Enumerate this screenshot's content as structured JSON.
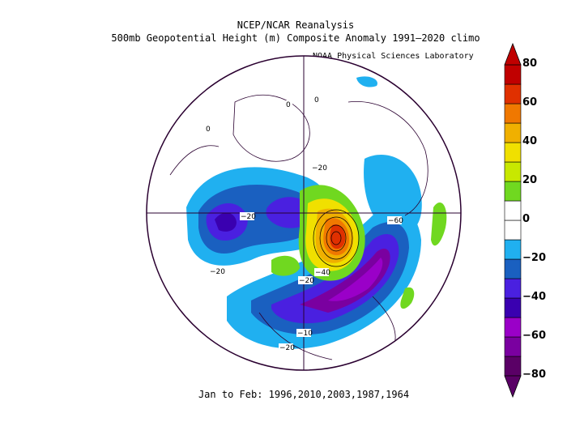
{
  "title": {
    "line1": "NCEP/NCAR Reanalysis",
    "line2": "500mb Geopotential Height (m) Composite Anomaly 1991–2020 climo"
  },
  "credit": "NOAA Physical Sciences Laboratory",
  "footer": "Jan to Feb: 1996,2010,2003,1987,1964",
  "colorbar": {
    "ticks": [
      "80",
      "60",
      "40",
      "20",
      "0",
      "−20",
      "−40",
      "−60",
      "−80"
    ],
    "colors": [
      "#5a0066",
      "#7a00a0",
      "#9a00c8",
      "#3a00b0",
      "#4a20e0",
      "#1a60c0",
      "#20b0f0",
      "#ffffff",
      "#ffffff",
      "#70d820",
      "#c8e800",
      "#f0e000",
      "#f0b000",
      "#f07800",
      "#e03000",
      "#c00000"
    ]
  },
  "contour_labels": [
    "0",
    "0",
    "0",
    "−20",
    "−20",
    "−20",
    "−60",
    "−40",
    "−20",
    "−10",
    "−20"
  ]
}
